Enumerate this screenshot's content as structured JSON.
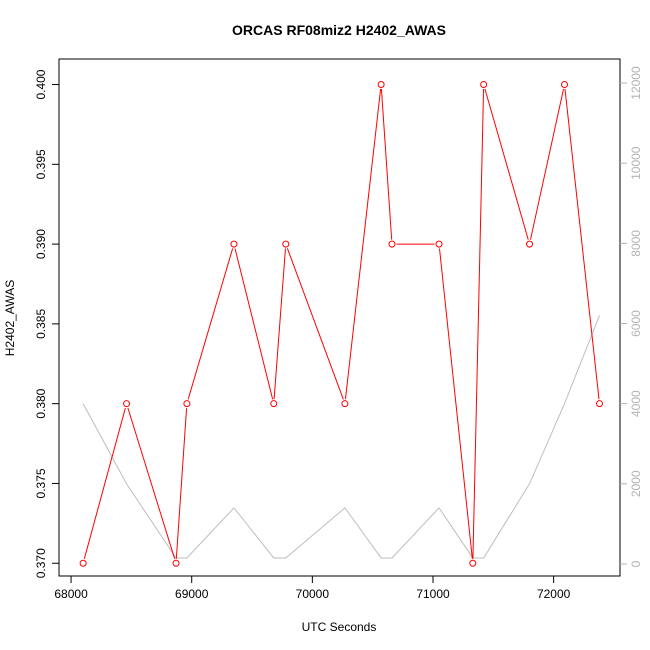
{
  "chart_data": {
    "type": "line",
    "title": "ORCAS RF08miz2 H2402_AWAS",
    "xlabel": "UTC Seconds",
    "ylabel": "H2402_AWAS",
    "xlim": [
      67900,
      72550
    ],
    "ylim": [
      0.3692,
      0.4016
    ],
    "y2lim": [
      -300,
      12600
    ],
    "x_ticks": [
      68000,
      69000,
      70000,
      71000,
      72000
    ],
    "y_ticks": [
      0.37,
      0.375,
      0.38,
      0.385,
      0.39,
      0.395,
      0.4
    ],
    "y_tick_labels": [
      "0.370",
      "0.375",
      "0.380",
      "0.385",
      "0.390",
      "0.395",
      "0.400"
    ],
    "y2_ticks": [
      0,
      2000,
      4000,
      6000,
      8000,
      10000,
      12000
    ],
    "series": [
      {
        "color": "#ff0000",
        "marker": "open-circle",
        "axis": "left",
        "segments": [
          [
            [
              68100,
              0.37
            ],
            [
              68460,
              0.38
            ],
            [
              68870,
              0.37
            ],
            [
              68960,
              0.38
            ],
            [
              69350,
              0.39
            ],
            [
              69680,
              0.38
            ],
            [
              69780,
              0.39
            ],
            [
              70270,
              0.38
            ],
            [
              70570,
              0.4
            ],
            [
              70660,
              0.39
            ]
          ],
          [
            [
              71050,
              0.39
            ],
            [
              71330,
              0.37
            ],
            [
              71420,
              0.4
            ],
            [
              71800,
              0.39
            ],
            [
              72090,
              0.4
            ],
            [
              72380,
              0.38
            ]
          ]
        ]
      },
      {
        "color": "#bebebe",
        "marker": "none",
        "axis": "right",
        "values": [
          [
            68100,
            4000
          ],
          [
            68460,
            2000
          ],
          [
            68870,
            150
          ],
          [
            68960,
            150
          ],
          [
            69350,
            1400
          ],
          [
            69680,
            150
          ],
          [
            69780,
            150
          ],
          [
            70270,
            1400
          ],
          [
            70570,
            150
          ],
          [
            70660,
            150
          ],
          [
            71050,
            1400
          ],
          [
            71330,
            150
          ],
          [
            71420,
            150
          ],
          [
            71800,
            2000
          ],
          [
            72090,
            4000
          ],
          [
            72380,
            6200
          ]
        ]
      }
    ],
    "grid": false,
    "legend": "none"
  }
}
